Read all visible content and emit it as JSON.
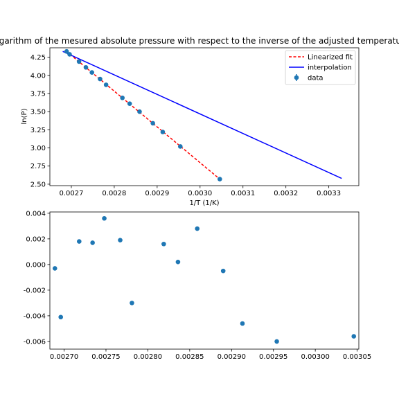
{
  "chart_data": [
    {
      "type": "scatter",
      "title": "Logarithm of the mesured absolute pressure with respect to the inverse of the adjusted temperature",
      "xlabel": "1/T (1/K)",
      "ylabel": "ln(P)",
      "xlim": [
        0.00265,
        0.00337
      ],
      "ylim": [
        2.48,
        4.38
      ],
      "x_ticks": [
        "0.0027",
        "0.0028",
        "0.0029",
        "0.0030",
        "0.0031",
        "0.0032",
        "0.0033"
      ],
      "x_tick_values": [
        0.0027,
        0.0028,
        0.0029,
        0.003,
        0.0031,
        0.0032,
        0.0033
      ],
      "y_ticks": [
        "2.50",
        "2.75",
        "3.00",
        "3.25",
        "3.50",
        "3.75",
        "4.00",
        "4.25"
      ],
      "y_tick_values": [
        2.5,
        2.75,
        3.0,
        3.25,
        3.5,
        3.75,
        4.0,
        4.25
      ],
      "legend_placement": "upper right",
      "legend": [
        "Linearized fit",
        "interpolation",
        "data"
      ],
      "series": [
        {
          "name": "Linearized fit",
          "kind": "line",
          "style": "dashed",
          "color": "#ff0000",
          "x": [
            0.002689,
            0.003046
          ],
          "y": [
            4.33,
            2.57
          ]
        },
        {
          "name": "interpolation",
          "kind": "line",
          "style": "solid",
          "color": "#0000ff",
          "x": [
            0.00268,
            0.00333
          ],
          "y": [
            4.33,
            2.58
          ]
        },
        {
          "name": "data",
          "kind": "points",
          "color": "#1f77b4",
          "x": [
            0.002689,
            0.002696,
            0.002718,
            0.002734,
            0.002748,
            0.002767,
            0.002781,
            0.002819,
            0.002836,
            0.002859,
            0.00289,
            0.002913,
            0.002954,
            0.003046
          ],
          "y": [
            4.33,
            4.29,
            4.19,
            4.11,
            4.04,
            3.95,
            3.87,
            3.69,
            3.61,
            3.5,
            3.34,
            3.22,
            3.02,
            2.57
          ]
        }
      ]
    },
    {
      "type": "scatter",
      "title": "",
      "xlabel": "",
      "ylabel": "",
      "xlim": [
        0.002683,
        0.003052
      ],
      "ylim": [
        -0.0066,
        0.0041
      ],
      "x_ticks": [
        "0.00270",
        "0.00275",
        "0.00280",
        "0.00285",
        "0.00290",
        "0.00295",
        "0.00300",
        "0.00305"
      ],
      "x_tick_values": [
        0.0027,
        0.00275,
        0.0028,
        0.00285,
        0.0029,
        0.00295,
        0.003,
        0.00305
      ],
      "y_ticks": [
        "0.004",
        "0.002",
        "0.000",
        "-0.002",
        "-0.004",
        "-0.006"
      ],
      "y_tick_values": [
        0.004,
        0.002,
        0.0,
        -0.002,
        -0.004,
        -0.006
      ],
      "series": [
        {
          "kind": "points",
          "color": "#1f77b4",
          "x": [
            0.002689,
            0.002696,
            0.002718,
            0.002734,
            0.002748,
            0.002767,
            0.002781,
            0.002819,
            0.002836,
            0.002859,
            0.00289,
            0.002913,
            0.002954,
            0.003046
          ],
          "y": [
            -0.0003,
            -0.0041,
            0.0018,
            0.0017,
            0.0036,
            0.0019,
            -0.003,
            0.0016,
            0.0002,
            0.0028,
            -0.0005,
            -0.0046,
            -0.006,
            -0.0056
          ]
        }
      ]
    }
  ]
}
